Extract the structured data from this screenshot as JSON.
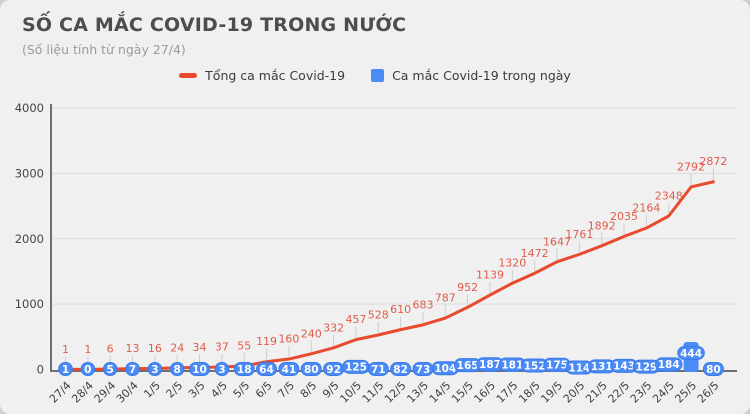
{
  "header": {
    "title": "SỐ CA MẮC COVID-19 TRONG NƯỚC",
    "subtitle": "(Số liệu tính từ ngày 27/4)"
  },
  "legend": [
    {
      "label": "Tổng ca mắc Covid-19",
      "color": "#e8492f",
      "shape": "dash"
    },
    {
      "label": "Ca mắc Covid-19 trong ngày",
      "color": "#4b8bf5",
      "shape": "square"
    }
  ],
  "colors": {
    "background": "#f0f0f1",
    "line": "#e8492f",
    "line_label": "#e05c49",
    "bar": "#4b8bf5",
    "bar_border": "#3b79ea",
    "axis": "#6f6f72",
    "grid": "#dcdcdd",
    "leader": "#cdcdcf",
    "tick_text": "#454547",
    "bar_label_text": "#ffffff"
  },
  "chart_data": {
    "type": "line+bar",
    "title": "SỐ CA MẮC COVID-19 TRONG NƯỚC",
    "subtitle": "(Số liệu tính từ ngày 27/4)",
    "categories": [
      "27/4",
      "28/4",
      "29/4",
      "30/4",
      "1/5",
      "2/5",
      "3/5",
      "4/5",
      "5/5",
      "6/5",
      "7/5",
      "8/5",
      "9/5",
      "10/5",
      "11/5",
      "12/5",
      "13/5",
      "14/5",
      "15/5",
      "16/5",
      "17/5",
      "18/5",
      "19/5",
      "20/5",
      "21/5",
      "22/5",
      "23/5",
      "24/5",
      "25/5",
      "26/5"
    ],
    "series": [
      {
        "name": "Tổng ca mắc Covid-19",
        "type": "line",
        "color": "#e8492f",
        "values": [
          1,
          1,
          6,
          13,
          16,
          24,
          34,
          37,
          55,
          119,
          160,
          240,
          332,
          457,
          528,
          610,
          683,
          787,
          952,
          1139,
          1320,
          1472,
          1647,
          1761,
          1892,
          2035,
          2164,
          2348,
          2792,
          2872
        ]
      },
      {
        "name": "Ca mắc Covid-19 trong ngày",
        "type": "bar",
        "color": "#4b8bf5",
        "values": [
          1,
          0,
          5,
          7,
          3,
          8,
          10,
          3,
          18,
          64,
          41,
          80,
          92,
          125,
          71,
          82,
          73,
          104,
          165,
          187,
          181,
          152,
          175,
          114,
          131,
          143,
          129,
          184,
          444,
          80
        ]
      }
    ],
    "ylim": [
      0,
      4000
    ],
    "yticks": [
      0,
      1000,
      2000,
      3000,
      4000
    ],
    "grid": true,
    "legend_position": "top"
  }
}
